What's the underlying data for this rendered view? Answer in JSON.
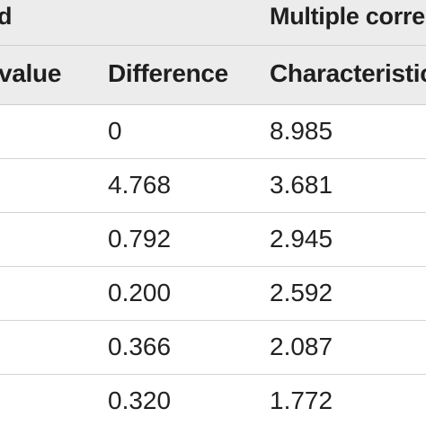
{
  "table": {
    "group_headers": [
      "d",
      "Multiple corre"
    ],
    "column_headers": [
      "value",
      "Difference",
      "Characteristic"
    ],
    "rows": [
      [
        "0",
        "8.985"
      ],
      [
        "4.768",
        "3.681"
      ],
      [
        "0.792",
        "2.945"
      ],
      [
        "0.200",
        "2.592"
      ],
      [
        "0.366",
        "2.087"
      ],
      [
        "0.320",
        "1.772"
      ]
    ]
  }
}
